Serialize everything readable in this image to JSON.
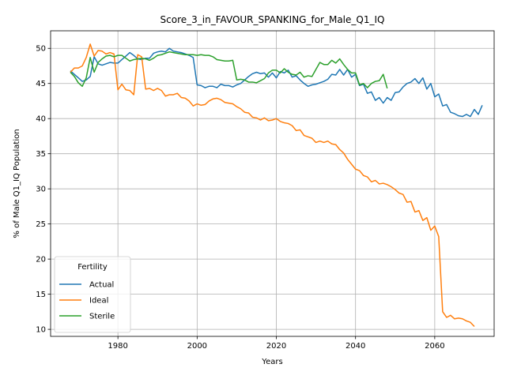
{
  "chart_data": {
    "type": "line",
    "title": "Score_3_in_FAVOUR_SPANKING_for_Male_Q1_IQ",
    "xlabel": "Years",
    "ylabel": "% of Male Q1_IQ Population",
    "xlim": [
      1963,
      2075
    ],
    "ylim": [
      9,
      52.5
    ],
    "xticks": [
      1980,
      2000,
      2020,
      2040,
      2060
    ],
    "yticks": [
      10,
      15,
      20,
      25,
      30,
      35,
      40,
      45,
      50
    ],
    "grid": true,
    "legend": {
      "title": "Fertility",
      "placement": "lower-left"
    },
    "x_start": 1968,
    "x_end": 2070,
    "series": [
      {
        "name": "Actual",
        "color": "#1f77b4",
        "values": [
          46.8,
          46.3,
          45.8,
          45.3,
          45.5,
          46.0,
          48.8,
          47.8,
          47.6,
          47.8,
          48.0,
          47.9,
          47.9,
          48.4,
          48.9,
          49.4,
          49.0,
          48.5,
          48.4,
          48.6,
          48.6,
          49.3,
          49.5,
          49.6,
          49.5,
          50.0,
          49.6,
          49.5,
          49.4,
          49.2,
          49.0,
          48.7,
          44.8,
          44.7,
          44.4,
          44.6,
          44.6,
          44.4,
          44.9,
          44.7,
          44.7,
          44.5,
          44.8,
          45.0,
          45.5,
          46.0,
          46.4,
          46.6,
          46.4,
          46.5,
          45.9,
          46.5,
          45.8,
          46.7,
          46.5,
          46.9,
          45.9,
          46.1,
          45.5,
          45.0,
          44.6,
          44.8,
          44.9,
          45.1,
          45.3,
          45.6,
          46.3,
          46.2,
          47.0,
          46.2,
          47.0,
          45.9,
          46.3,
          44.7,
          44.9,
          43.6,
          43.8,
          42.6,
          43.0,
          42.2,
          43.0,
          42.6,
          43.7,
          43.8,
          44.5,
          45.0,
          45.2,
          45.7,
          45.0,
          45.8,
          44.2,
          45.0,
          43.1,
          43.5,
          41.8,
          42.0,
          40.9,
          40.7,
          40.4,
          40.3,
          40.6,
          40.3,
          41.3,
          40.6,
          41.9
        ]
      },
      {
        "name": "Ideal",
        "color": "#ff7f0e",
        "values": [
          46.6,
          47.2,
          47.2,
          47.5,
          48.7,
          50.6,
          48.9,
          49.7,
          49.6,
          49.2,
          49.4,
          49.2,
          44.1,
          44.9,
          44.1,
          44.0,
          43.4,
          49.1,
          48.8,
          44.2,
          44.3,
          44.0,
          44.3,
          44.0,
          43.2,
          43.4,
          43.4,
          43.6,
          43.0,
          42.9,
          42.5,
          41.8,
          42.1,
          41.9,
          42.0,
          42.5,
          42.8,
          42.9,
          42.7,
          42.3,
          42.2,
          42.1,
          41.7,
          41.4,
          40.9,
          40.8,
          40.2,
          40.1,
          39.8,
          40.1,
          39.7,
          39.8,
          40.0,
          39.6,
          39.4,
          39.3,
          39.0,
          38.3,
          38.4,
          37.6,
          37.4,
          37.2,
          36.6,
          36.8,
          36.6,
          36.8,
          36.4,
          36.3,
          35.6,
          35.1,
          34.2,
          33.5,
          32.8,
          32.6,
          31.9,
          31.7,
          31.0,
          31.2,
          30.7,
          30.8,
          30.6,
          30.3,
          29.9,
          29.4,
          29.2,
          28.1,
          28.2,
          26.7,
          26.9,
          25.5,
          25.9,
          24.1,
          24.7,
          23.2,
          12.5,
          11.7,
          12.0,
          11.5,
          11.6,
          11.5,
          11.2,
          11.0,
          10.4
        ]
      },
      {
        "name": "Sterile",
        "color": "#2ca02c",
        "values": [
          46.6,
          46.0,
          45.1,
          44.6,
          45.8,
          48.7,
          46.6,
          48.0,
          48.5,
          48.9,
          49.0,
          48.8,
          49.0,
          49.0,
          48.6,
          48.2,
          48.4,
          48.5,
          48.6,
          48.5,
          48.3,
          48.6,
          49.0,
          49.1,
          49.3,
          49.5,
          49.4,
          49.3,
          49.2,
          49.1,
          49.1,
          49.1,
          49.0,
          49.1,
          49.0,
          49.0,
          48.8,
          48.4,
          48.3,
          48.2,
          48.2,
          48.3,
          45.5,
          45.6,
          45.5,
          45.2,
          45.2,
          45.1,
          45.4,
          45.7,
          46.5,
          46.9,
          46.9,
          46.5,
          47.1,
          46.6,
          46.3,
          46.2,
          46.6,
          45.9,
          46.1,
          46.0,
          47.0,
          48.0,
          47.7,
          47.7,
          48.3,
          47.9,
          48.5,
          47.7,
          47.0,
          46.5,
          46.5,
          44.8,
          45.0,
          44.4,
          45.0,
          45.3,
          45.4,
          46.3,
          44.3,
          null,
          null,
          null,
          null,
          null,
          null,
          null,
          null,
          null,
          null,
          null,
          null,
          null,
          null,
          null,
          null,
          null,
          null,
          null,
          null,
          null,
          null
        ]
      }
    ]
  }
}
